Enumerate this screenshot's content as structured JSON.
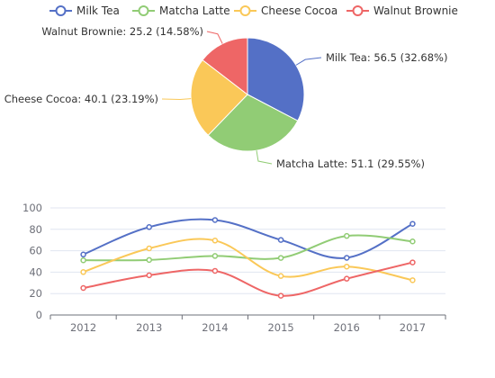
{
  "colors": {
    "series": [
      "#5470c6",
      "#91cc75",
      "#fac858",
      "#ee6666"
    ],
    "axis": "#6e7079",
    "grid": "#e0e6f1"
  },
  "chart_data": [
    {
      "type": "pie",
      "title": "",
      "legend_position": "top-center",
      "slices": [
        {
          "name": "Milk Tea",
          "value": 56.5,
          "label": "Milk Tea: 56.5 (32.68%)"
        },
        {
          "name": "Matcha Latte",
          "value": 51.1,
          "label": "Matcha Latte: 51.1 (29.55%)"
        },
        {
          "name": "Cheese Cocoa",
          "value": 40.1,
          "label": "Cheese Cocoa: 40.1 (23.19%)"
        },
        {
          "name": "Walnut Brownie",
          "value": 25.2,
          "label": "Walnut Brownie: 25.2 (14.58%)"
        }
      ]
    },
    {
      "type": "line",
      "title": "",
      "xlabel": "",
      "ylabel": "",
      "categories": [
        "2012",
        "2013",
        "2014",
        "2015",
        "2016",
        "2017"
      ],
      "ylim": [
        0,
        100
      ],
      "yticks": [
        0,
        20,
        40,
        60,
        80,
        100
      ],
      "smooth": true,
      "grid": true,
      "series": [
        {
          "name": "Milk Tea",
          "values": [
            56.5,
            82.1,
            88.7,
            70.1,
            53.4,
            85.1
          ]
        },
        {
          "name": "Matcha Latte",
          "values": [
            51.1,
            51.4,
            55.1,
            53.3,
            73.8,
            68.7
          ]
        },
        {
          "name": "Cheese Cocoa",
          "values": [
            40.1,
            62.2,
            69.5,
            36.4,
            45.2,
            32.5
          ]
        },
        {
          "name": "Walnut Brownie",
          "values": [
            25.2,
            37.1,
            41.2,
            18.0,
            33.9,
            49.1
          ]
        }
      ]
    }
  ]
}
